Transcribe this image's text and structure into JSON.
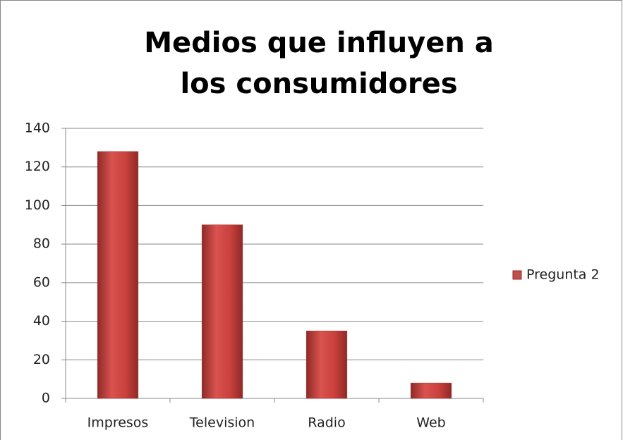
{
  "chart_data": {
    "type": "bar",
    "title": "Medios que influyen a los consumidores",
    "categories": [
      "Impresos",
      "Television",
      "Radio",
      "Web"
    ],
    "series": [
      {
        "name": "Pregunta 2",
        "color": "#c0504d",
        "values": [
          128,
          90,
          35,
          8
        ]
      }
    ],
    "ylim": [
      0,
      140
    ],
    "yticks": [
      0,
      20,
      40,
      60,
      80,
      100,
      120,
      140
    ],
    "grid": true,
    "legend": "right"
  }
}
